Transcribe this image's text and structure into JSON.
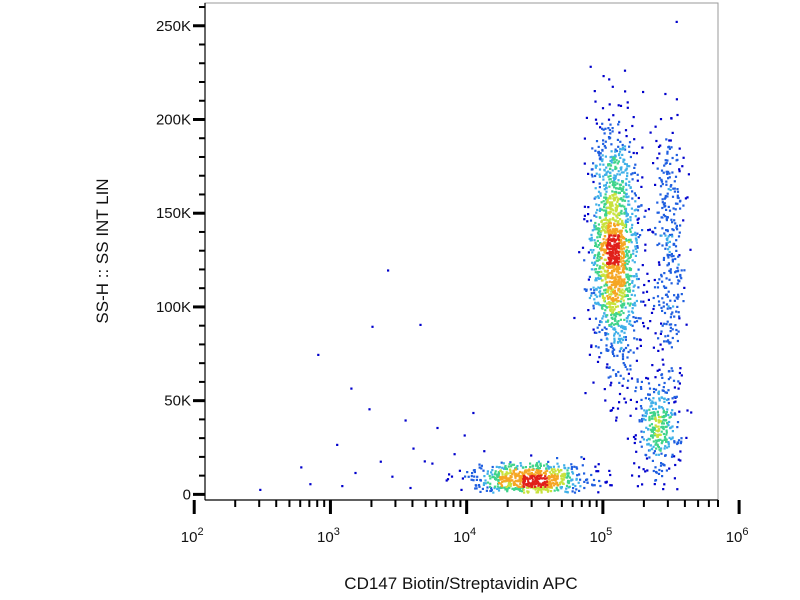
{
  "chart_data": {
    "type": "scatter",
    "style": "flow-cytometry density dot plot (blue = low density, red = high density)",
    "xlabel": "CD147 Biotin/Streptavidin APC",
    "ylabel": "SS-H :: SS INT LIN",
    "x_scale": "log",
    "xlim": [
      120,
      700000
    ],
    "x_ticks": [
      {
        "value": 100,
        "base": "10",
        "exp": "2"
      },
      {
        "value": 1000,
        "base": "10",
        "exp": "3"
      },
      {
        "value": 10000,
        "base": "10",
        "exp": "4"
      },
      {
        "value": 100000,
        "base": "10",
        "exp": "5"
      },
      {
        "value": 1000000,
        "base": "10",
        "exp": "6"
      }
    ],
    "y_scale": "linear",
    "ylim": [
      -3000,
      262144
    ],
    "y_ticks": [
      {
        "value": 0,
        "label": "0"
      },
      {
        "value": 50000,
        "label": "50K"
      },
      {
        "value": 100000,
        "label": "100K"
      },
      {
        "value": 150000,
        "label": "150K"
      },
      {
        "value": 200000,
        "label": "200K"
      },
      {
        "value": 250000,
        "label": "250K"
      }
    ],
    "density_colors": [
      "#0000cc",
      "#1f5fe0",
      "#3fb0e8",
      "#3fd48a",
      "#c8e23c",
      "#f5a623",
      "#e0201a"
    ],
    "populations": [
      {
        "x": 120000,
        "y": 130000,
        "x_log_spread": 0.09,
        "y_spread": 32000
      },
      {
        "x": 30000,
        "y": 9000,
        "x_log_spread": 0.22,
        "y_spread": 4500
      },
      {
        "x": 250000,
        "y": 35000,
        "x_log_spread": 0.08,
        "y_spread": 14000
      },
      {
        "x": 300000,
        "y": 130000,
        "x_log_spread": 0.06,
        "y_spread": 40000
      }
    ],
    "scattered_events": [
      [
        2600,
        120000
      ],
      [
        4500,
        91000
      ],
      [
        2000,
        90000
      ],
      [
        800,
        75000
      ],
      [
        1400,
        57000
      ],
      [
        1900,
        46000
      ],
      [
        3500,
        40000
      ],
      [
        6000,
        36000
      ],
      [
        1100,
        27000
      ],
      [
        4000,
        25000
      ],
      [
        8000,
        22000
      ],
      [
        600,
        15000
      ],
      [
        1500,
        12000
      ],
      [
        2800,
        10000
      ],
      [
        7000,
        8000
      ],
      [
        700,
        6000
      ],
      [
        1200,
        5000
      ],
      [
        3800,
        4000
      ],
      [
        9000,
        3000
      ],
      [
        300,
        3000
      ],
      [
        5500,
        17000
      ],
      [
        9500,
        32000
      ],
      [
        2300,
        18000
      ],
      [
        11000,
        44000
      ]
    ],
    "grid": false
  }
}
